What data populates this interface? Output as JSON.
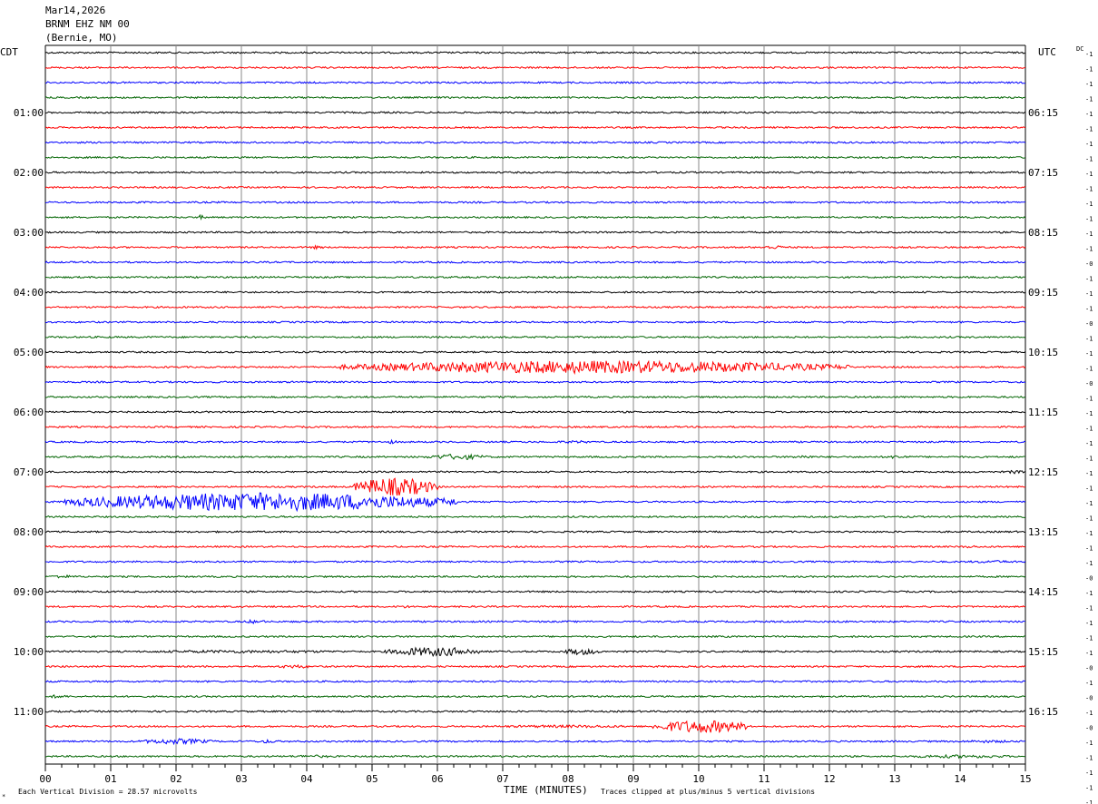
{
  "header": {
    "date": "Mar14,2026",
    "station": "BRNM EHZ NM 00",
    "location": "(Bernie, MO)"
  },
  "left_tz": "CDT",
  "right_tz": "UTC",
  "dc_label": "DC",
  "footer": {
    "scale": "Each Vertical Division =   28.57 microvolts",
    "clip": "Traces clipped at plus/minus 5 vertical divisions",
    "corner_mark": "*"
  },
  "chart_data": {
    "type": "helicorder",
    "xlabel": "TIME (MINUTES)",
    "x_ticks": [
      "00",
      "01",
      "02",
      "03",
      "04",
      "05",
      "06",
      "07",
      "08",
      "09",
      "10",
      "11",
      "12",
      "13",
      "14",
      "15"
    ],
    "xlim": [
      0,
      15
    ],
    "trace_colors": [
      "#000000",
      "#ff0000",
      "#0000ff",
      "#006400"
    ],
    "left_hour_labels": [
      "01:00",
      "02:00",
      "03:00",
      "04:00",
      "05:00",
      "06:00",
      "07:00",
      "08:00",
      "09:00",
      "10:00",
      "11:00"
    ],
    "right_hour_labels": [
      "06:15",
      "07:15",
      "08:15",
      "09:15",
      "10:15",
      "11:15",
      "12:15",
      "13:15",
      "14:15",
      "15:15",
      "16:15"
    ],
    "dc_offsets": [
      "-1",
      "-1",
      "-1",
      "-1",
      "-1",
      "-1",
      "-1",
      "-1",
      "-1",
      "-1",
      "-1",
      "-1",
      "-1",
      "-1",
      "-0",
      "-1",
      "-1",
      "-1",
      "-0",
      "-1",
      "-1",
      "-1",
      "-0",
      "-1",
      "-1",
      "-1",
      "-1",
      "-1",
      "-1",
      "-1",
      "-1",
      "-1",
      "-1",
      "-1",
      "-1",
      "-0",
      "-1",
      "-1",
      "-1",
      "-1",
      "-1",
      "-0",
      "-1",
      "-0",
      "-1",
      "-0",
      "-1",
      "-1",
      "-1",
      "-1",
      "-1"
    ],
    "events": [
      {
        "trace": 11,
        "start": 2.3,
        "end": 2.45,
        "amp": 2.5
      },
      {
        "trace": 13,
        "start": 4.0,
        "end": 4.3,
        "amp": 1.8
      },
      {
        "trace": 13,
        "start": 10.9,
        "end": 11.4,
        "amp": 2.0
      },
      {
        "trace": 17,
        "start": 10.8,
        "end": 11.0,
        "amp": 1.2
      },
      {
        "trace": 21,
        "start": 4.5,
        "end": 12.3,
        "amp": 7.0
      },
      {
        "trace": 26,
        "start": 5.2,
        "end": 5.4,
        "amp": 2.0
      },
      {
        "trace": 26,
        "start": 7.7,
        "end": 8.5,
        "amp": 1.5
      },
      {
        "trace": 27,
        "start": 5.8,
        "end": 6.8,
        "amp": 3.0
      },
      {
        "trace": 27,
        "start": 11.4,
        "end": 11.8,
        "amp": 1.8
      },
      {
        "trace": 27,
        "start": 12.8,
        "end": 13.3,
        "amp": 1.8
      },
      {
        "trace": 28,
        "start": 14.7,
        "end": 15.0,
        "amp": 2.0
      },
      {
        "trace": 29,
        "start": 4.7,
        "end": 6.0,
        "amp": 10.0
      },
      {
        "trace": 30,
        "start": 0.3,
        "end": 6.3,
        "amp": 10.0
      },
      {
        "trace": 33,
        "start": 14.0,
        "end": 14.3,
        "amp": 1.5
      },
      {
        "trace": 34,
        "start": 14.0,
        "end": 15.0,
        "amp": 1.5
      },
      {
        "trace": 35,
        "start": 0.0,
        "end": 0.5,
        "amp": 1.8
      },
      {
        "trace": 37,
        "start": 5.3,
        "end": 5.7,
        "amp": 1.5
      },
      {
        "trace": 38,
        "start": 3.0,
        "end": 3.4,
        "amp": 2.0
      },
      {
        "trace": 38,
        "start": 12.0,
        "end": 12.4,
        "amp": 1.2
      },
      {
        "trace": 40,
        "start": 1.0,
        "end": 5.0,
        "amp": 1.6
      },
      {
        "trace": 40,
        "start": 5.2,
        "end": 6.7,
        "amp": 5.0
      },
      {
        "trace": 40,
        "start": 7.9,
        "end": 8.5,
        "amp": 3.5
      },
      {
        "trace": 41,
        "start": 3.5,
        "end": 4.1,
        "amp": 2.0
      },
      {
        "trace": 43,
        "start": 0.0,
        "end": 0.4,
        "amp": 1.8
      },
      {
        "trace": 45,
        "start": 6.5,
        "end": 9.5,
        "amp": 1.5
      },
      {
        "trace": 45,
        "start": 9.3,
        "end": 10.8,
        "amp": 7.0
      },
      {
        "trace": 46,
        "start": 1.4,
        "end": 2.6,
        "amp": 3.0
      },
      {
        "trace": 46,
        "start": 3.2,
        "end": 3.6,
        "amp": 2.0
      },
      {
        "trace": 46,
        "start": 13.8,
        "end": 15.0,
        "amp": 1.5
      },
      {
        "trace": 47,
        "start": 3.6,
        "end": 4.6,
        "amp": 1.5
      },
      {
        "trace": 47,
        "start": 13.0,
        "end": 15.0,
        "amp": 1.8
      }
    ]
  }
}
